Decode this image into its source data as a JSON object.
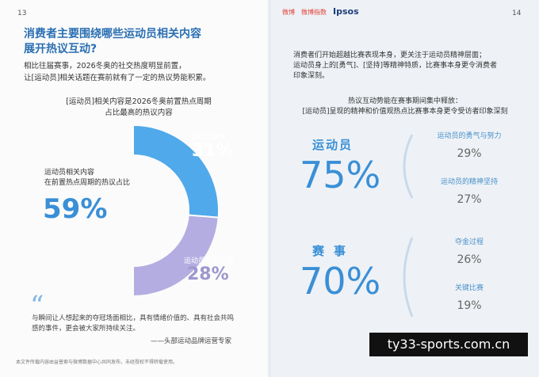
{
  "left_page": {
    "page_number": "13",
    "title": [
      "消费者主要围绕哪些运动员相关内容",
      "展开热议互动?"
    ],
    "intro": [
      "相比往届赛事，2026冬奥的社交热度明显前置，",
      "让[运动员]相关话题在赛前就有了一定的热议势能积累。"
    ],
    "chart_title": [
      "[运动员]相关内容是2026冬奥前置热点周期",
      "占比最高的热议内容"
    ],
    "donut": {
      "segments": [
        {
          "name": "运动员精神",
          "value": {
            "value": 31,
            "label": "31%"
          },
          "color": "#4fa9ea"
        },
        {
          "name": "运动员赛前过程",
          "value": {
            "value": 28,
            "label": "28%"
          },
          "color": "#b3ade2"
        }
      ],
      "center_caption": [
        "运动员相关内容",
        "在前置热点周期的热议占比"
      ],
      "center_value": "59%"
    },
    "quote_mark": "“",
    "quote": [
      "与瞬间让人想起来的夺冠场面相比，具有情绪价值的、具有社会共鸣",
      "感的事件，更会被大家所持续关注。"
    ],
    "attribution": "——头部运动品牌运营专家",
    "footer": "本文件所载内容由益普索与微博数据中心共同发布，未经授权不得转载使用。"
  },
  "right_page": {
    "page_number": "14",
    "logos": [
      "微博",
      "微博指数",
      "Ipsos"
    ],
    "intro": [
      "消费者们开始超越比赛表现本身，更关注于运动员精神层面；",
      "运动员身上的[勇气]、[坚持]等精神特质，比赛事本身更令消费者",
      "印象深刻。"
    ],
    "chart_title": [
      "热议互动势能在赛事期间集中释放：",
      "[运动员]呈现的精神和价值观热点比赛事本身更令受访者印象深刻"
    ],
    "groups": [
      {
        "name": "运动员",
        "value": "75%",
        "items": [
          {
            "name": "运动员的勇气与努力",
            "value": "29%"
          },
          {
            "name": "运动员的精神坚持",
            "value": "27%"
          }
        ]
      },
      {
        "name": "赛事",
        "value": "70%",
        "items": [
          {
            "name": "夺金过程",
            "value": "26%"
          },
          {
            "name": "关键比赛",
            "value": "19%"
          }
        ]
      }
    ]
  },
  "watermark": "ty33-sports.com.cn"
}
